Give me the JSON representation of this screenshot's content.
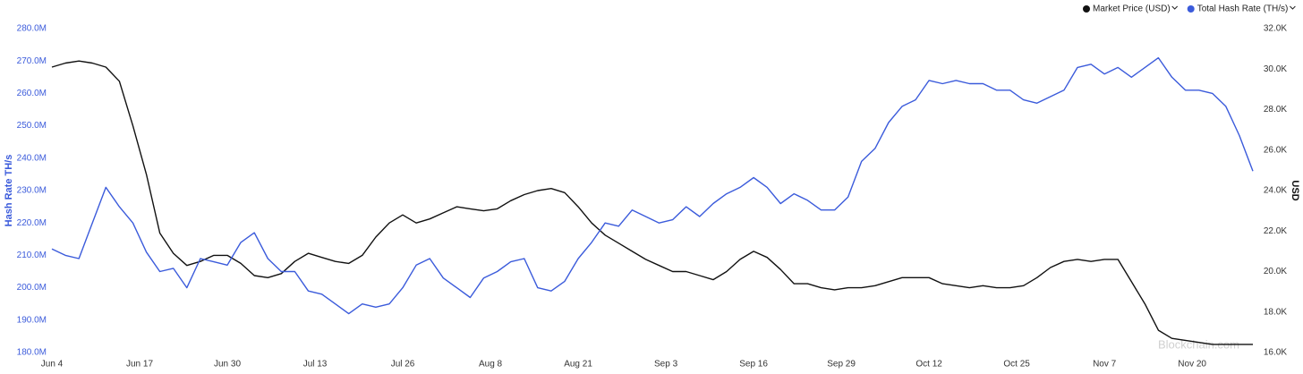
{
  "chart_data": {
    "type": "line",
    "axis_title": "Hash Rate TH/s",
    "y2_axis_title": "USD",
    "watermark": "Blockchain.com",
    "legend": "top-right",
    "x": [
      0,
      2,
      4,
      6,
      8,
      10,
      12,
      14,
      16,
      18,
      20,
      22,
      24,
      26,
      28,
      30,
      32,
      34,
      36,
      38,
      40,
      42,
      44,
      46,
      48,
      50,
      52,
      54,
      56,
      58,
      60,
      62,
      64,
      66,
      68,
      70,
      72,
      74,
      76,
      78,
      80,
      82,
      84,
      86,
      88,
      90,
      92,
      94,
      96,
      98,
      100,
      102,
      104,
      106,
      108,
      110,
      112,
      114,
      116,
      118,
      120,
      122,
      124,
      126,
      128,
      130,
      132,
      134,
      136,
      138,
      140,
      142,
      144,
      146,
      148,
      150,
      152,
      154,
      156,
      158,
      160,
      162,
      164,
      166,
      168,
      170,
      172,
      174,
      176,
      178
    ],
    "xlim": [
      0,
      178
    ],
    "xticks": [
      {
        "value": 0,
        "label": "Jun 4"
      },
      {
        "value": 13,
        "label": "Jun 17"
      },
      {
        "value": 26,
        "label": "Jun 30"
      },
      {
        "value": 39,
        "label": "Jul 13"
      },
      {
        "value": 52,
        "label": "Jul 26"
      },
      {
        "value": 65,
        "label": "Aug 8"
      },
      {
        "value": 78,
        "label": "Aug 21"
      },
      {
        "value": 91,
        "label": "Sep 3"
      },
      {
        "value": 104,
        "label": "Sep 16"
      },
      {
        "value": 117,
        "label": "Sep 29"
      },
      {
        "value": 130,
        "label": "Oct 12"
      },
      {
        "value": 143,
        "label": "Oct 25"
      },
      {
        "value": 156,
        "label": "Nov 7"
      },
      {
        "value": 169,
        "label": "Nov 20"
      }
    ],
    "ylim": [
      180000000,
      280000000
    ],
    "yticks": [
      {
        "value": 180000000,
        "label": "180.0M"
      },
      {
        "value": 190000000,
        "label": "190.0M"
      },
      {
        "value": 200000000,
        "label": "200.0M"
      },
      {
        "value": 210000000,
        "label": "210.0M"
      },
      {
        "value": 220000000,
        "label": "220.0M"
      },
      {
        "value": 230000000,
        "label": "230.0M"
      },
      {
        "value": 240000000,
        "label": "240.0M"
      },
      {
        "value": 250000000,
        "label": "250.0M"
      },
      {
        "value": 260000000,
        "label": "260.0M"
      },
      {
        "value": 270000000,
        "label": "270.0M"
      },
      {
        "value": 280000000,
        "label": "280.0M"
      }
    ],
    "y2lim": [
      16000,
      32000
    ],
    "y2ticks": [
      {
        "value": 16000,
        "label": "16.0K"
      },
      {
        "value": 18000,
        "label": "18.0K"
      },
      {
        "value": 20000,
        "label": "20.0K"
      },
      {
        "value": 22000,
        "label": "22.0K"
      },
      {
        "value": 24000,
        "label": "24.0K"
      },
      {
        "value": 26000,
        "label": "26.0K"
      },
      {
        "value": 28000,
        "label": "28.0K"
      },
      {
        "value": 30000,
        "label": "30.0K"
      },
      {
        "value": 32000,
        "label": "32.0K"
      }
    ],
    "series": [
      {
        "name": "Market Price (USD)",
        "color": "#111111",
        "axis": "y2",
        "values": [
          30100,
          30300,
          30400,
          30300,
          30100,
          29400,
          27200,
          24800,
          21900,
          20900,
          20300,
          20500,
          20800,
          20800,
          20400,
          19800,
          19700,
          19900,
          20500,
          20900,
          20700,
          20500,
          20400,
          20800,
          21700,
          22400,
          22800,
          22400,
          22600,
          22900,
          23200,
          23100,
          23000,
          23100,
          23500,
          23800,
          24000,
          24100,
          23900,
          23200,
          22400,
          21800,
          21400,
          21000,
          20600,
          20300,
          20000,
          20000,
          19800,
          19600,
          20000,
          20600,
          21000,
          20700,
          20100,
          19400,
          19400,
          19200,
          19100,
          19200,
          19200,
          19300,
          19500,
          19700,
          19700,
          19700,
          19400,
          19300,
          19200,
          19300,
          19200,
          19200,
          19300,
          19700,
          20200,
          20500,
          20600,
          20500,
          20600,
          20600,
          19500,
          18400,
          17100,
          16700,
          16600,
          16500,
          16400,
          16400,
          16400,
          16400
        ]
      },
      {
        "name": "Total Hash Rate (TH/s)",
        "color": "#3b5bdb",
        "values": [
          212000000,
          210000000,
          209000000,
          220000000,
          231000000,
          225000000,
          220000000,
          211000000,
          205000000,
          206000000,
          200000000,
          209000000,
          208000000,
          207000000,
          214000000,
          217000000,
          209000000,
          205000000,
          205000000,
          199000000,
          198000000,
          195000000,
          192000000,
          195000000,
          194000000,
          195000000,
          200000000,
          207000000,
          209000000,
          203000000,
          200000000,
          197000000,
          203000000,
          205000000,
          208000000,
          209000000,
          200000000,
          199000000,
          202000000,
          209000000,
          214000000,
          220000000,
          219000000,
          224000000,
          222000000,
          220000000,
          221000000,
          225000000,
          222000000,
          226000000,
          229000000,
          231000000,
          234000000,
          231000000,
          226000000,
          229000000,
          227000000,
          224000000,
          224000000,
          228000000,
          239000000,
          243000000,
          251000000,
          256000000,
          258000000,
          264000000,
          263000000,
          264000000,
          263000000,
          263000000,
          261000000,
          261000000,
          258000000,
          257000000,
          259000000,
          261000000,
          268000000,
          269000000,
          266000000,
          268000000,
          265000000,
          268000000,
          271000000,
          265000000,
          261000000,
          261000000,
          260000000,
          256000000,
          247000000,
          236000000
        ]
      }
    ]
  }
}
